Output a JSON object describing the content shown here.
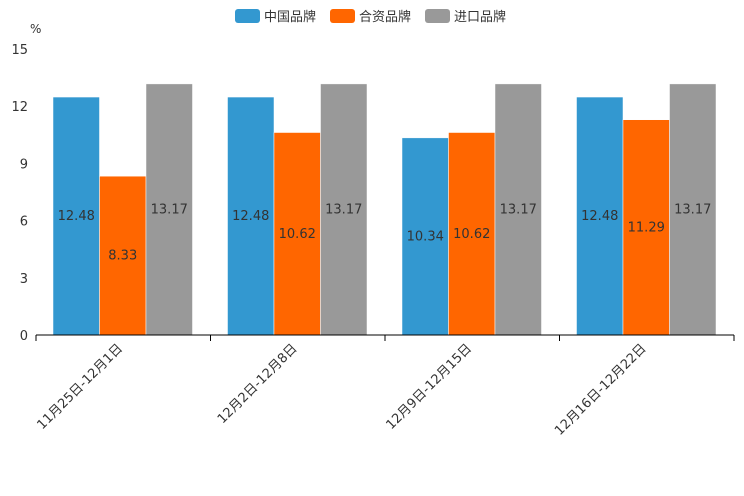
{
  "chart_data": {
    "type": "bar",
    "unit": "%",
    "categories": [
      "11月25日-12月1日",
      "12月2日-12月8日",
      "12月9日-12月15日",
      "12月16日-12月22日"
    ],
    "series": [
      {
        "name": "中国品牌",
        "color": "#3398d0",
        "values": [
          12.48,
          12.48,
          10.34,
          12.48
        ],
        "labels": [
          "12.48",
          "12.48",
          "10.34",
          "12.48"
        ]
      },
      {
        "name": "合资品牌",
        "color": "#ff6600",
        "values": [
          8.33,
          10.62,
          10.62,
          11.29
        ],
        "labels": [
          "8.33",
          "10.62",
          "10.62",
          "11.29"
        ]
      },
      {
        "name": "进口品牌",
        "color": "#999999",
        "values": [
          13.17,
          13.17,
          13.17,
          13.17
        ],
        "labels": [
          "13.17",
          "13.17",
          "13.17",
          "13.17"
        ]
      }
    ],
    "yticks": [
      "0",
      "3",
      "6",
      "9",
      "12",
      "15"
    ],
    "ytick_values": [
      0,
      3,
      6,
      9,
      12,
      15
    ],
    "ylim": [
      0,
      15
    ],
    "legend_position": "top-center",
    "grid": false
  }
}
